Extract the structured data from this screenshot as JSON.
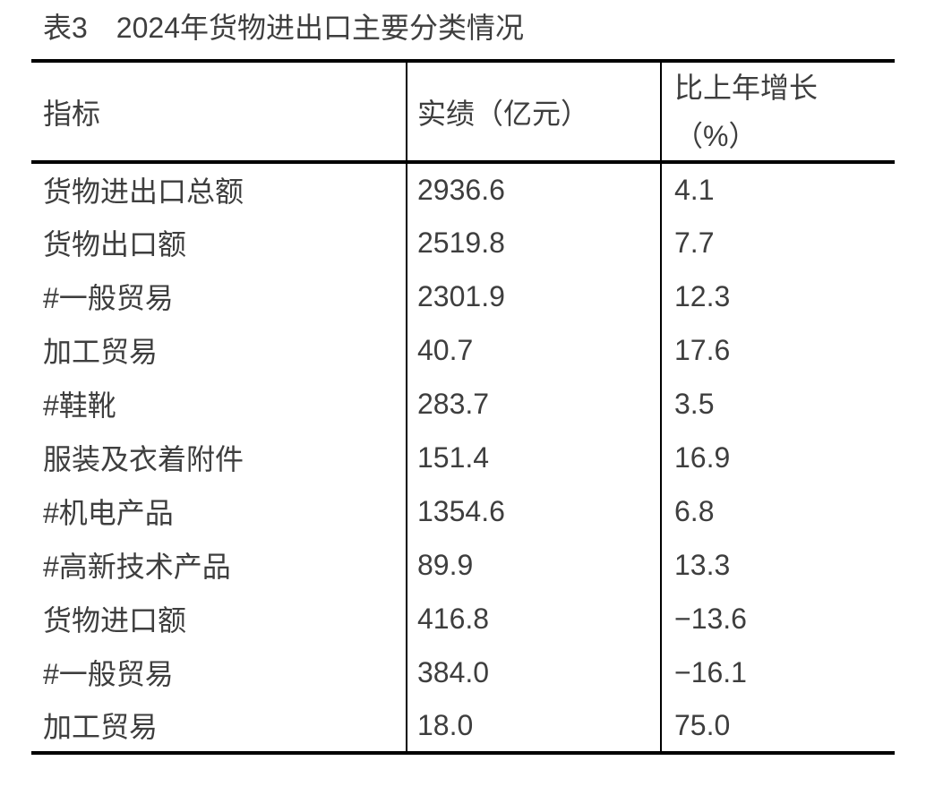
{
  "page": {
    "background_color": "#ffffff",
    "text_color": "#3e3e3e",
    "border_color": "#000000"
  },
  "title": "表3　2024年货物进出口主要分类情况",
  "table": {
    "headers": {
      "indicator": "指标",
      "value": "实绩（亿元）",
      "growth_line1": "比上年增长",
      "growth_line2": "（%）"
    },
    "rows": [
      {
        "indicator": "货物进出口总额",
        "value": "2936.6",
        "growth": "4.1"
      },
      {
        "indicator": "货物出口额",
        "value": "2519.8",
        "growth": "7.7"
      },
      {
        "indicator": "#一般贸易",
        "value": "2301.9",
        "growth": "12.3"
      },
      {
        "indicator": "加工贸易",
        "value": "40.7",
        "growth": "17.6"
      },
      {
        "indicator": "#鞋靴",
        "value": "283.7",
        "growth": "3.5"
      },
      {
        "indicator": "服装及衣着附件",
        "value": "151.4",
        "growth": "16.9"
      },
      {
        "indicator": "#机电产品",
        "value": "1354.6",
        "growth": "6.8"
      },
      {
        "indicator": "#高新技术产品",
        "value": "89.9",
        "growth": "13.3"
      },
      {
        "indicator": "货物进口额",
        "value": "416.8",
        "growth": "−13.6"
      },
      {
        "indicator": "#一般贸易",
        "value": "384.0",
        "growth": "−16.1"
      },
      {
        "indicator": "加工贸易",
        "value": "18.0",
        "growth": "75.0"
      }
    ]
  }
}
